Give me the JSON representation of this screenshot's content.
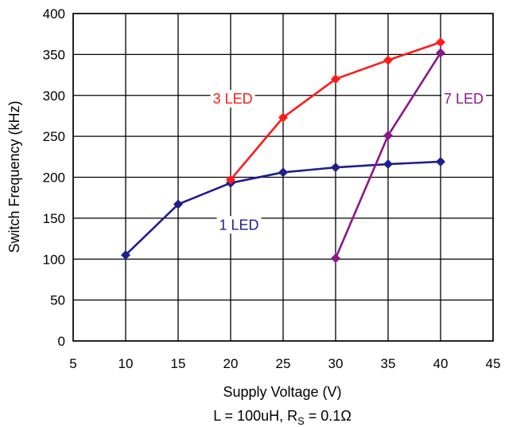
{
  "chart_data": {
    "type": "line",
    "xlabel": "Supply Voltage (V)",
    "ylabel": "Switch Frequency (kHz)",
    "xlim": [
      5,
      45
    ],
    "ylim": [
      0,
      400
    ],
    "xticks": [
      5,
      10,
      15,
      20,
      25,
      30,
      35,
      40,
      45
    ],
    "yticks": [
      0,
      50,
      100,
      150,
      200,
      250,
      300,
      350,
      400
    ],
    "grid": true,
    "legend": "inline labels",
    "note": {
      "prefix": "L = 100uH, R",
      "subscript": "S",
      "suffix": " = 0.1Ω"
    },
    "series": [
      {
        "name": "1 LED",
        "color": "#1f1f8f",
        "x": [
          10,
          15,
          20,
          25,
          30,
          35,
          40
        ],
        "y": [
          105,
          167,
          193,
          206,
          212,
          216,
          219
        ]
      },
      {
        "name": "3 LED",
        "color": "#ff1a1a",
        "x": [
          20,
          25,
          30,
          35,
          40
        ],
        "y": [
          197,
          273,
          320,
          343,
          365
        ]
      },
      {
        "name": "7 LED",
        "color": "#8b178b",
        "x": [
          30,
          35,
          40
        ],
        "y": [
          101,
          251,
          352
        ]
      }
    ]
  }
}
